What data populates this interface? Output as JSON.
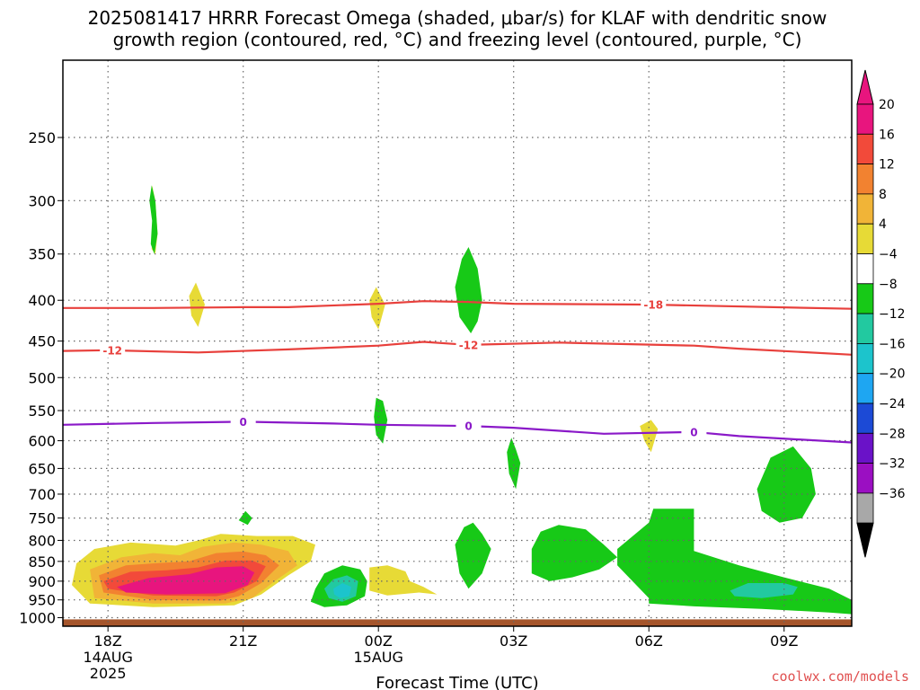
{
  "chart_data": {
    "type": "heatmap",
    "title_lines": [
      "2025081417 HRRR Forecast Omega (shaded, μbar/s) for KLAF with dendritic snow",
      "growth region (contoured, red, °C) and freezing level (contoured, purple, °C)"
    ],
    "xlabel": "Forecast Time (UTC)",
    "ylabel": "",
    "credit": "coolwx.com/models",
    "x_domain_hours": [
      -1.0,
      16.5
    ],
    "x_ticks": [
      {
        "hour": 0,
        "lines": [
          "18Z",
          "14AUG",
          "2025"
        ]
      },
      {
        "hour": 3,
        "lines": [
          "21Z"
        ]
      },
      {
        "hour": 6,
        "lines": [
          "00Z",
          "15AUG"
        ]
      },
      {
        "hour": 9,
        "lines": [
          "03Z"
        ]
      },
      {
        "hour": 12,
        "lines": [
          "06Z"
        ]
      },
      {
        "hour": 15,
        "lines": [
          "09Z"
        ]
      }
    ],
    "y_axis": {
      "scale": "log-pressure",
      "top_hpa": 200,
      "bottom_hpa": 1025
    },
    "y_ticks": [
      250,
      300,
      350,
      400,
      450,
      500,
      550,
      600,
      650,
      700,
      750,
      800,
      850,
      900,
      950,
      1000
    ],
    "colorbar": {
      "labels": [
        "20",
        "16",
        "12",
        "8",
        "4",
        "−4",
        "−8",
        "−12",
        "−16",
        "−20",
        "−24",
        "−28",
        "−32",
        "−36"
      ],
      "colors": [
        "#e8157e",
        "#f24a3a",
        "#f28230",
        "#f1b437",
        "#e7da36",
        "#ffffff",
        "#17c917",
        "#22c9a0",
        "#1cc4cc",
        "#1ea6f2",
        "#1c4ad6",
        "#6a12c8",
        "#9b0fc2",
        "#a8a8a8",
        "#000000"
      ],
      "top_arrow_color": "#e8157e",
      "bottom_arrow_color": "#000000"
    },
    "contours": [
      {
        "label": "-18",
        "color": "#e8403c",
        "points": [
          [
            -1,
            409
          ],
          [
            1,
            409
          ],
          [
            3,
            408
          ],
          [
            4,
            408
          ],
          [
            6,
            404
          ],
          [
            7,
            401
          ],
          [
            8,
            402
          ],
          [
            9,
            404
          ],
          [
            12,
            405
          ],
          [
            16.5,
            410
          ]
        ],
        "label_at_hour": 12.1
      },
      {
        "label": "-12",
        "color": "#e8403c",
        "points": [
          [
            -1,
            463
          ],
          [
            0,
            462
          ],
          [
            2,
            465
          ],
          [
            4,
            461
          ],
          [
            6,
            456
          ],
          [
            7,
            451
          ],
          [
            8,
            455
          ],
          [
            10,
            452
          ],
          [
            13,
            456
          ],
          [
            14,
            460
          ],
          [
            16.5,
            468
          ]
        ],
        "label_at_hour": 0.1
      },
      {
        "label": "-12",
        "color": "#e8403c",
        "points": [],
        "label_point": [
          8,
          455
        ]
      },
      {
        "label": "0",
        "color": "#8a19c8",
        "points": [
          [
            -1,
            573
          ],
          [
            1,
            570
          ],
          [
            3,
            568
          ],
          [
            5,
            571
          ],
          [
            6,
            573
          ],
          [
            8,
            575
          ],
          [
            9,
            578
          ],
          [
            11,
            588
          ],
          [
            13,
            585
          ],
          [
            14,
            592
          ],
          [
            16.5,
            603
          ]
        ],
        "label_at_hour": 3.0
      },
      {
        "label": "0",
        "color": "#8a19c8",
        "points": [],
        "label_point": [
          8,
          575
        ]
      },
      {
        "label": "0",
        "color": "#8a19c8",
        "points": [],
        "label_point": [
          13,
          585
        ]
      }
    ],
    "omega_regions": [
      {
        "level": "4",
        "color": "#e7da36",
        "points": [
          [
            -0.7,
            855
          ],
          [
            -0.3,
            820
          ],
          [
            0.5,
            805
          ],
          [
            1.5,
            812
          ],
          [
            2,
            800
          ],
          [
            2.5,
            785
          ],
          [
            3.3,
            790
          ],
          [
            4.1,
            790
          ],
          [
            4.6,
            810
          ],
          [
            4.5,
            850
          ],
          [
            4,
            885
          ],
          [
            3.4,
            935
          ],
          [
            2.8,
            965
          ],
          [
            1,
            970
          ],
          [
            -0.4,
            960
          ],
          [
            -0.8,
            910
          ]
        ]
      },
      {
        "level": "8",
        "color": "#f1b437",
        "points": [
          [
            -0.4,
            870
          ],
          [
            0.3,
            840
          ],
          [
            1,
            830
          ],
          [
            1.6,
            835
          ],
          [
            2.1,
            815
          ],
          [
            2.8,
            805
          ],
          [
            3.4,
            810
          ],
          [
            4.0,
            825
          ],
          [
            4.2,
            860
          ],
          [
            3.7,
            900
          ],
          [
            3.2,
            945
          ],
          [
            2.6,
            960
          ],
          [
            1,
            960
          ],
          [
            -0.3,
            945
          ]
        ]
      },
      {
        "level": "12",
        "color": "#f28230",
        "points": [
          [
            -0.2,
            885
          ],
          [
            0.4,
            860
          ],
          [
            1,
            855
          ],
          [
            1.8,
            850
          ],
          [
            2.4,
            830
          ],
          [
            3.0,
            826
          ],
          [
            3.5,
            835
          ],
          [
            3.8,
            860
          ],
          [
            3.4,
            905
          ],
          [
            2.9,
            940
          ],
          [
            2.5,
            952
          ],
          [
            1,
            950
          ],
          [
            -0.1,
            930
          ]
        ]
      },
      {
        "level": "16",
        "color": "#f24a3a",
        "points": [
          [
            -0.1,
            900
          ],
          [
            0.5,
            876
          ],
          [
            1.3,
            872
          ],
          [
            2.0,
            865
          ],
          [
            2.6,
            848
          ],
          [
            3.2,
            848
          ],
          [
            3.5,
            862
          ],
          [
            3.3,
            900
          ],
          [
            2.8,
            930
          ],
          [
            2.4,
            940
          ],
          [
            1,
            938
          ],
          [
            0,
            920
          ]
        ]
      },
      {
        "level": "20",
        "color": "#e8157e",
        "points": [
          [
            0.2,
            915
          ],
          [
            0.9,
            892
          ],
          [
            1.8,
            882
          ],
          [
            2.4,
            865
          ],
          [
            3.0,
            862
          ],
          [
            3.25,
            878
          ],
          [
            3.1,
            910
          ],
          [
            2.6,
            932
          ],
          [
            1.3,
            935
          ],
          [
            0.4,
            930
          ]
        ]
      },
      {
        "level": "4",
        "color": "#e7da36",
        "points": [
          [
            1,
            318
          ],
          [
            0.95,
            300
          ],
          [
            0.98,
            287
          ],
          [
            1.05,
            300
          ],
          [
            1.1,
            330
          ],
          [
            1.05,
            350
          ],
          [
            0.97,
            345
          ]
        ]
      },
      {
        "level": "4",
        "color": "#e7da36",
        "points": [
          [
            1.8,
            395
          ],
          [
            1.95,
            380
          ],
          [
            2.15,
            405
          ],
          [
            2.0,
            432
          ],
          [
            1.85,
            418
          ]
        ]
      },
      {
        "level": "4",
        "color": "#e7da36",
        "points": [
          [
            5.8,
            400
          ],
          [
            5.95,
            385
          ],
          [
            6.15,
            405
          ],
          [
            6.0,
            435
          ],
          [
            5.85,
            420
          ]
        ]
      },
      {
        "level": "4",
        "color": "#e7da36",
        "points": [
          [
            5.8,
            865
          ],
          [
            6.2,
            860
          ],
          [
            6.6,
            875
          ],
          [
            6.7,
            900
          ],
          [
            7.0,
            915
          ],
          [
            7.3,
            935
          ],
          [
            6.9,
            930
          ],
          [
            6.2,
            938
          ],
          [
            5.8,
            925
          ]
        ]
      },
      {
        "level": "4",
        "color": "#e7da36",
        "points": [
          [
            11.8,
            575
          ],
          [
            12.05,
            565
          ],
          [
            12.2,
            580
          ],
          [
            12.05,
            620
          ],
          [
            11.9,
            600
          ]
        ]
      },
      {
        "level": "-4",
        "color": "#17c917",
        "points": [
          [
            0.98,
            318
          ],
          [
            0.92,
            300
          ],
          [
            0.97,
            287
          ],
          [
            1.05,
            300
          ],
          [
            1.1,
            330
          ],
          [
            1.03,
            350
          ],
          [
            0.95,
            340
          ]
        ]
      },
      {
        "level": "-4",
        "color": "#17c917",
        "points": [
          [
            7.7,
            385
          ],
          [
            7.85,
            355
          ],
          [
            8.0,
            343
          ],
          [
            8.2,
            365
          ],
          [
            8.3,
            400
          ],
          [
            8.2,
            425
          ],
          [
            8.05,
            440
          ],
          [
            7.8,
            420
          ]
        ]
      },
      {
        "level": "-4",
        "color": "#17c917",
        "points": [
          [
            5.9,
            560
          ],
          [
            5.95,
            530
          ],
          [
            6.1,
            535
          ],
          [
            6.2,
            565
          ],
          [
            6.1,
            605
          ],
          [
            5.95,
            590
          ]
        ]
      },
      {
        "level": "-4",
        "color": "#17c917",
        "points": [
          [
            8.85,
            620
          ],
          [
            8.95,
            595
          ],
          [
            9.05,
            615
          ],
          [
            9.15,
            640
          ],
          [
            9.05,
            690
          ],
          [
            8.9,
            660
          ]
        ]
      },
      {
        "level": "-4",
        "color": "#17c917",
        "points": [
          [
            2.9,
            755
          ],
          [
            3.05,
            735
          ],
          [
            3.2,
            750
          ],
          [
            3.1,
            765
          ]
        ]
      },
      {
        "level": "-4",
        "color": "#17c917",
        "points": [
          [
            4.6,
            920
          ],
          [
            4.8,
            880
          ],
          [
            5.2,
            860
          ],
          [
            5.6,
            870
          ],
          [
            5.75,
            900
          ],
          [
            5.7,
            940
          ],
          [
            5.3,
            965
          ],
          [
            4.8,
            970
          ],
          [
            4.5,
            955
          ]
        ]
      },
      {
        "level": "-4",
        "color": "#17c917",
        "points": [
          [
            7.7,
            810
          ],
          [
            7.9,
            770
          ],
          [
            8.1,
            760
          ],
          [
            8.3,
            785
          ],
          [
            8.5,
            820
          ],
          [
            8.3,
            880
          ],
          [
            8.0,
            920
          ],
          [
            7.8,
            880
          ]
        ]
      },
      {
        "level": "-4",
        "color": "#17c917",
        "points": [
          [
            9.4,
            820
          ],
          [
            9.6,
            780
          ],
          [
            10.0,
            765
          ],
          [
            10.6,
            775
          ],
          [
            11.0,
            810
          ],
          [
            11.3,
            840
          ],
          [
            10.9,
            870
          ],
          [
            10.3,
            890
          ],
          [
            9.8,
            900
          ],
          [
            9.4,
            880
          ]
        ]
      },
      {
        "level": "-4",
        "color": "#17c917",
        "points": [
          [
            11.3,
            820
          ],
          [
            12.0,
            760
          ],
          [
            12.1,
            730
          ],
          [
            13.0,
            730
          ],
          [
            13.0,
            825
          ],
          [
            14.0,
            860
          ],
          [
            15.0,
            890
          ],
          [
            16.0,
            920
          ],
          [
            16.5,
            950
          ],
          [
            16.5,
            990
          ],
          [
            16,
            985
          ],
          [
            14.5,
            975
          ],
          [
            13,
            968
          ],
          [
            12,
            960
          ],
          [
            12,
            945
          ],
          [
            11.3,
            860
          ]
        ]
      },
      {
        "level": "-4",
        "color": "#17c917",
        "points": [
          [
            14.4,
            690
          ],
          [
            14.7,
            630
          ],
          [
            15.2,
            610
          ],
          [
            15.6,
            650
          ],
          [
            15.7,
            700
          ],
          [
            15.4,
            750
          ],
          [
            14.9,
            760
          ],
          [
            14.5,
            735
          ]
        ]
      },
      {
        "level": "-8",
        "color": "#22c9a0",
        "points": [
          [
            4.8,
            920
          ],
          [
            5.0,
            895
          ],
          [
            5.3,
            885
          ],
          [
            5.55,
            900
          ],
          [
            5.5,
            940
          ],
          [
            5.2,
            955
          ],
          [
            4.9,
            945
          ]
        ]
      },
      {
        "level": "-8",
        "color": "#22c9a0",
        "points": [
          [
            13.8,
            925
          ],
          [
            14.2,
            905
          ],
          [
            15,
            905
          ],
          [
            15.3,
            915
          ],
          [
            15.2,
            935
          ],
          [
            14.5,
            945
          ],
          [
            13.9,
            940
          ]
        ]
      },
      {
        "level": "-12",
        "color": "#1cc4cc",
        "points": [
          [
            5.0,
            920
          ],
          [
            5.2,
            905
          ],
          [
            5.4,
            915
          ],
          [
            5.35,
            940
          ],
          [
            5.15,
            945
          ],
          [
            5.02,
            935
          ]
        ]
      }
    ],
    "ground_band": {
      "top_hpa": 1005,
      "bottom_hpa": 1025,
      "color": "#a5552b"
    }
  }
}
